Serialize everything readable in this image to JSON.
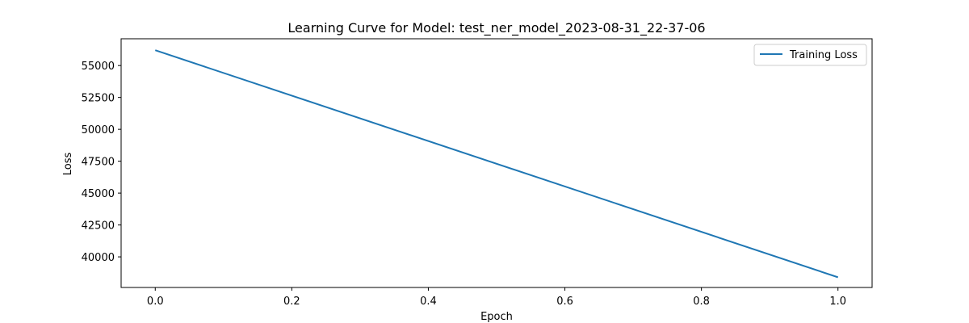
{
  "chart_data": {
    "type": "line",
    "title": "Learning Curve for Model: test_ner_model_2023-08-31_22-37-06",
    "xlabel": "Epoch",
    "ylabel": "Loss",
    "xlim": [
      -0.05,
      1.05
    ],
    "ylim": [
      37600,
      57100
    ],
    "x_ticks": [
      0.0,
      0.2,
      0.4,
      0.6,
      0.8,
      1.0
    ],
    "x_tick_labels": [
      "0.0",
      "0.2",
      "0.4",
      "0.6",
      "0.8",
      "1.0"
    ],
    "y_ticks": [
      40000,
      42500,
      45000,
      47500,
      50000,
      52500,
      55000
    ],
    "y_tick_labels": [
      "40000",
      "42500",
      "45000",
      "47500",
      "50000",
      "52500",
      "55000"
    ],
    "grid": false,
    "legend_position": "top-right",
    "series": [
      {
        "name": "Training Loss",
        "color": "#1f77b4",
        "x": [
          0,
          1
        ],
        "y": [
          56200,
          38400
        ]
      }
    ]
  }
}
